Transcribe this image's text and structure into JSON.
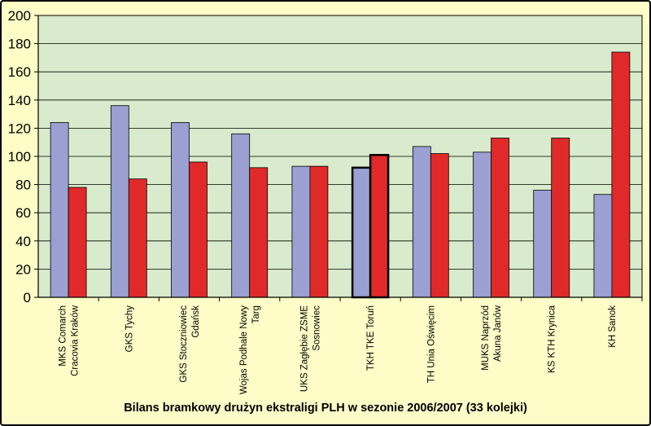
{
  "chart_data": {
    "type": "bar",
    "title": "Bilans bramkowy drużyn ekstraligi PLH w sezonie 2006/2007 (33 kolejki)",
    "xlabel": "",
    "ylabel": "",
    "ylim": [
      0,
      200
    ],
    "yticks": [
      "0",
      "20",
      "40",
      "60",
      "80",
      "100",
      "120",
      "140",
      "160",
      "180",
      "200"
    ],
    "grid": true,
    "legend": "none",
    "categories": [
      [
        "MKS Comarch",
        "Cracovia Kraków"
      ],
      [
        "GKS Tychy"
      ],
      [
        "GKS Stoczniowiec",
        "Gdańsk"
      ],
      [
        "Wojas Podhale Nowy",
        "Targ"
      ],
      [
        "UKS Zagłębie ZSME",
        "Sosnowiec"
      ],
      [
        "TKH TKE Toruń"
      ],
      [
        "TH Unia Oświęcim"
      ],
      [
        "MUKS Naprzód",
        "Akuna Janów"
      ],
      [
        "KS KTH Krynica"
      ],
      [
        "KH Sanok"
      ]
    ],
    "series": [
      {
        "color": "#9aa0d2",
        "values": [
          124,
          136,
          124,
          116,
          93,
          92,
          107,
          103,
          76,
          73
        ]
      },
      {
        "color": "#e02a2a",
        "values": [
          78,
          84,
          96,
          92,
          93,
          101,
          102,
          113,
          113,
          174
        ]
      }
    ],
    "highlighted_category": 5,
    "colors": {
      "plot_bg": "#d8ebcc",
      "frame_bg": "#fefcc7",
      "grid": "#000000"
    }
  }
}
